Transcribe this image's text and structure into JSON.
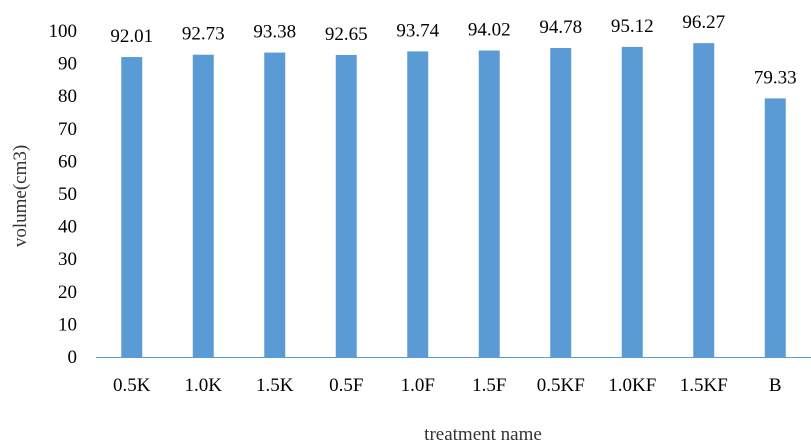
{
  "chart_data": {
    "type": "bar",
    "title": "",
    "xlabel": "treatment name",
    "ylabel": "volume(cm3)",
    "ylim": [
      0,
      100
    ],
    "yticks": [
      0,
      10,
      20,
      30,
      40,
      50,
      60,
      70,
      80,
      90,
      100
    ],
    "grid": false,
    "legend": "none",
    "bar_color": "#5b9bd5",
    "axis_color": "#5b9bd5",
    "categories": [
      "0.5K",
      "1.0K",
      "1.5K",
      "0.5F",
      "1.0F",
      "1.5F",
      "0.5KF",
      "1.0KF",
      "1.5KF",
      "B"
    ],
    "values": [
      92.01,
      92.73,
      93.38,
      92.65,
      93.74,
      94.02,
      94.78,
      95.12,
      96.27,
      79.33
    ],
    "data_labels": [
      "92.01",
      "92.73",
      "93.38",
      "92.65",
      "93.74",
      "94.02",
      "94.78",
      "95.12",
      "96.27",
      "79.33"
    ]
  }
}
